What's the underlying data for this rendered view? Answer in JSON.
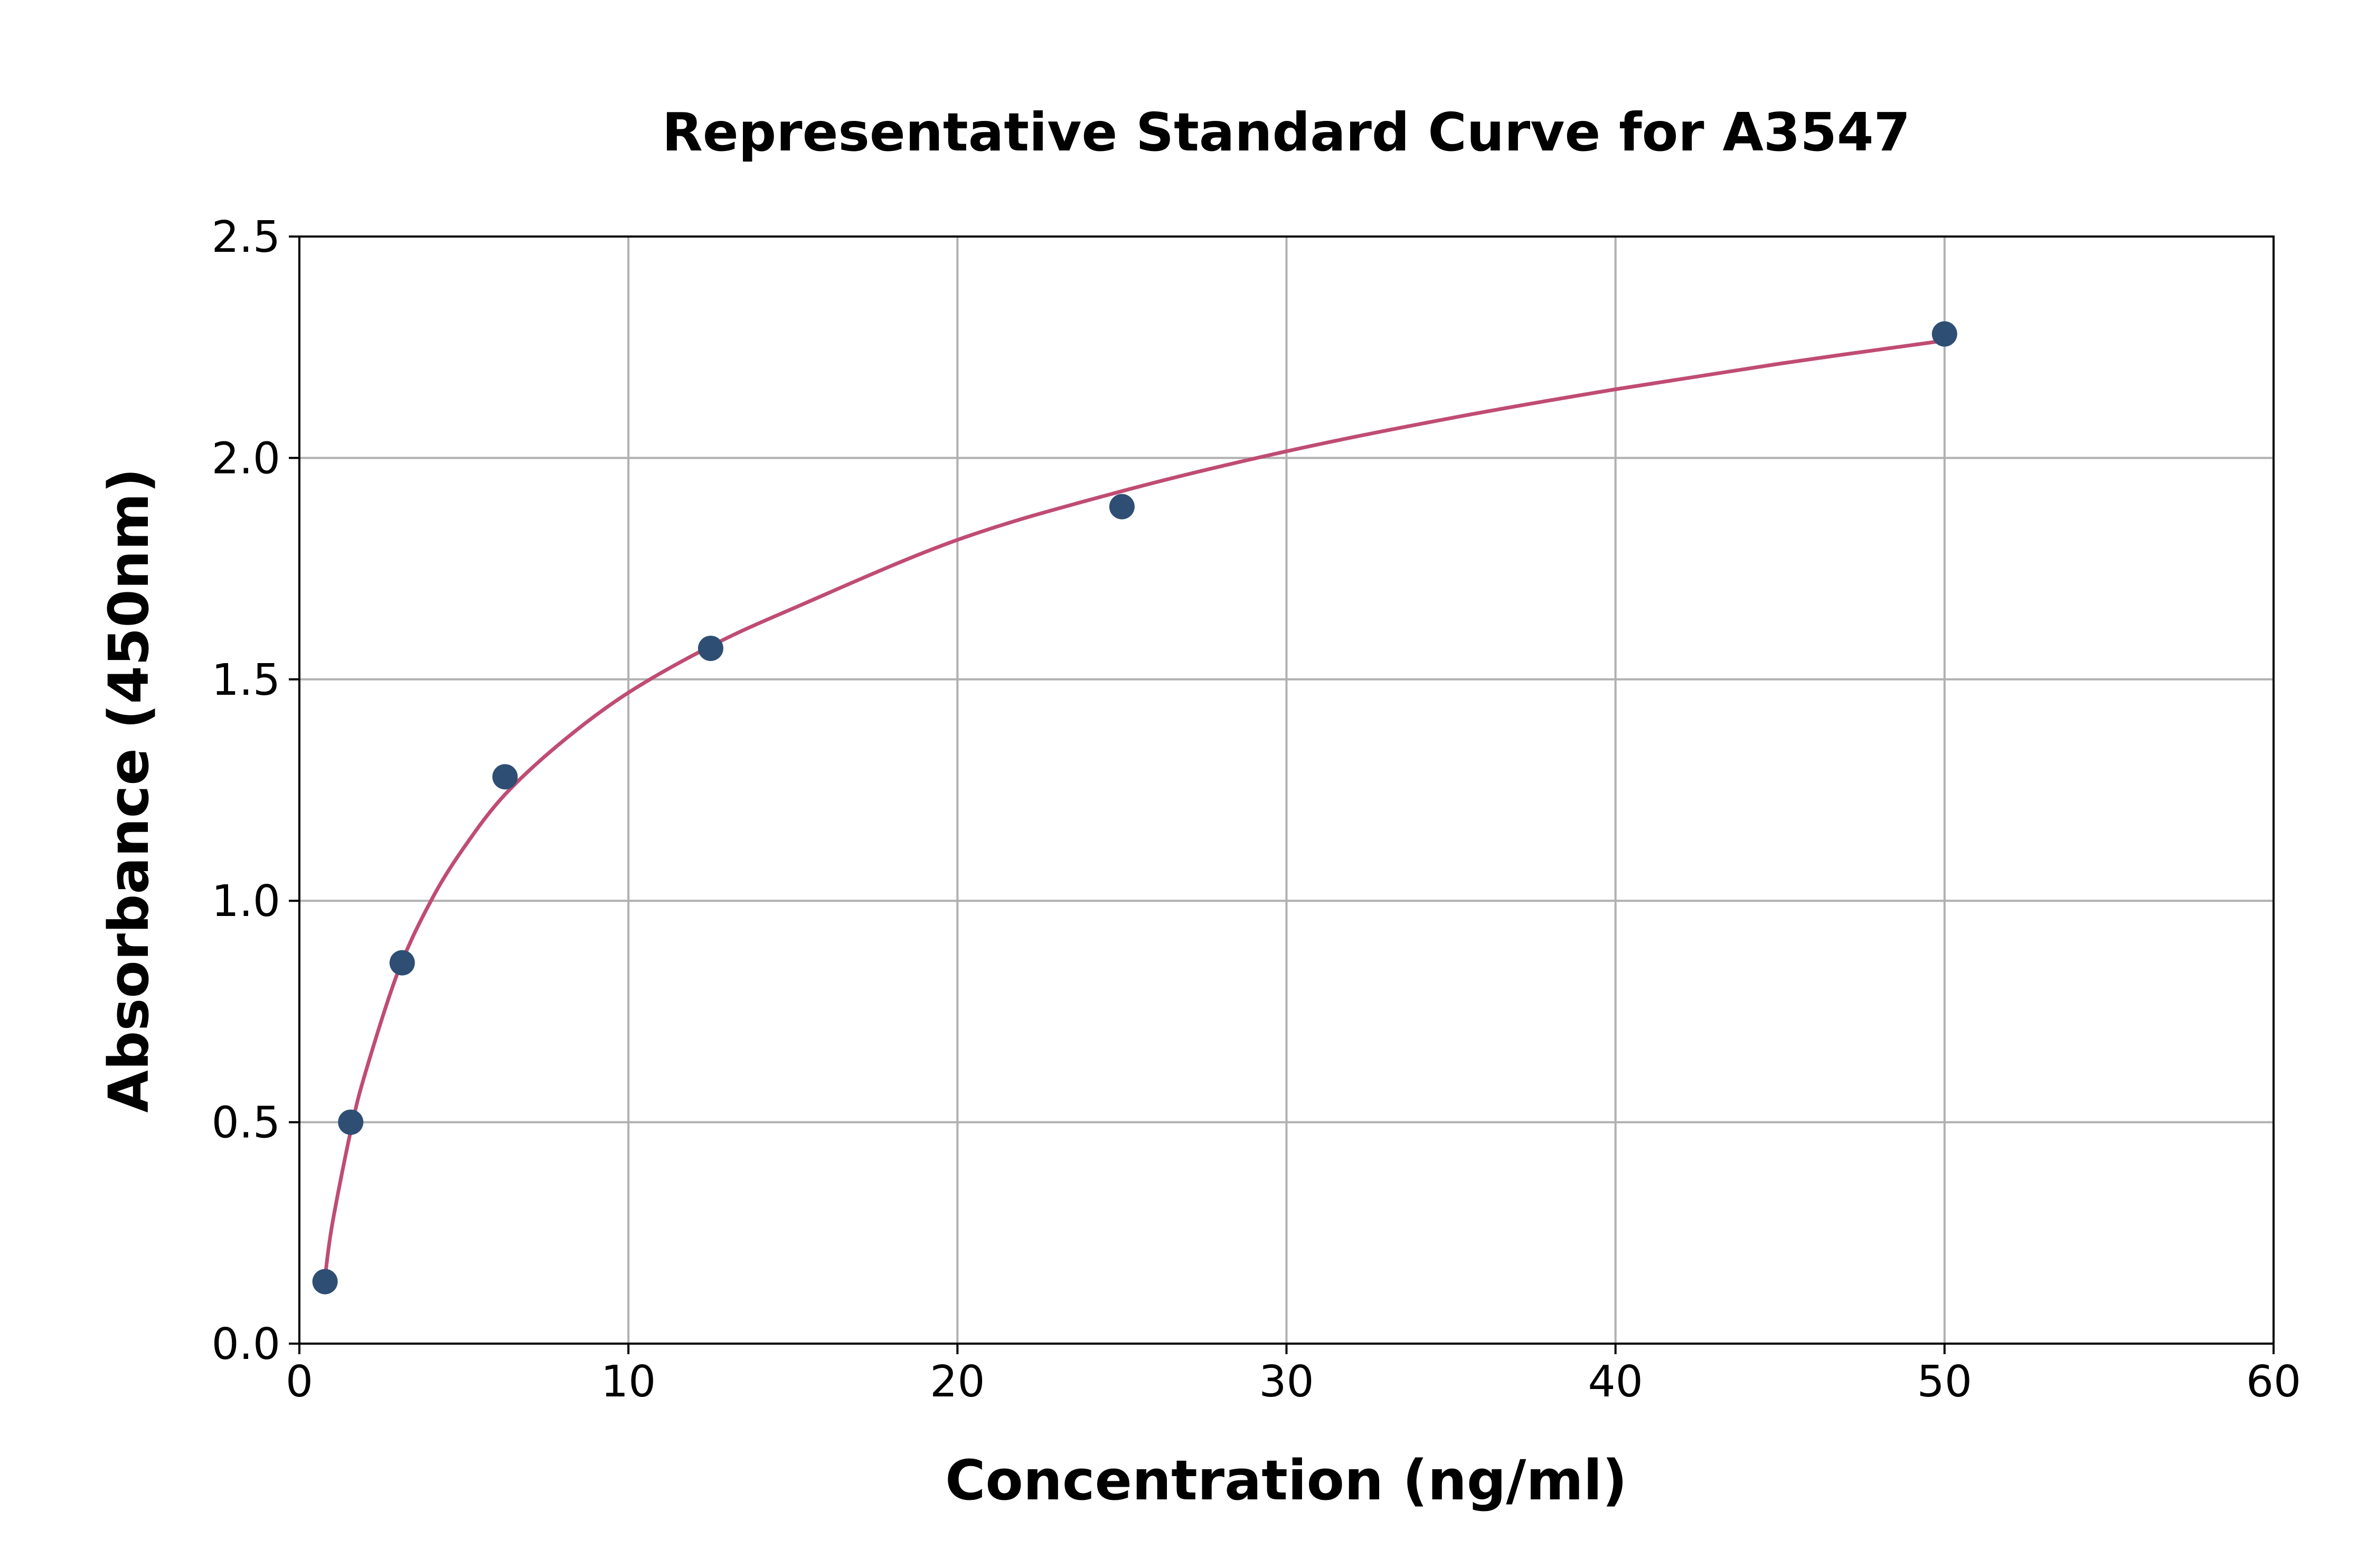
{
  "chart_data": {
    "type": "scatter",
    "title": "Representative Standard Curve for A3547",
    "xlabel": "Concentration (ng/ml)",
    "ylabel": "Absorbance (450nm)",
    "xlim": [
      0,
      60
    ],
    "ylim": [
      0,
      2.5
    ],
    "xticks": [
      "0",
      "10",
      "20",
      "30",
      "40",
      "50",
      "60"
    ],
    "yticks": [
      "0.0",
      "0.5",
      "1.0",
      "1.5",
      "2.0",
      "2.5"
    ],
    "grid": true,
    "points": {
      "x": [
        0.78,
        1.56,
        3.125,
        6.25,
        12.5,
        25,
        50
      ],
      "y": [
        0.14,
        0.5,
        0.86,
        1.28,
        1.57,
        1.89,
        2.28
      ],
      "color": "#2e4e74"
    },
    "fit_curve": {
      "x": [
        0.78,
        1.0,
        1.56,
        2.0,
        3.0,
        4.0,
        5.0,
        6.25,
        8.0,
        10.0,
        12.5,
        15.0,
        20.0,
        25.0,
        30.0,
        35.0,
        40.0,
        45.0,
        50.0
      ],
      "y": [
        0.15,
        0.27,
        0.48,
        0.61,
        0.84,
        1.0,
        1.12,
        1.24,
        1.36,
        1.47,
        1.575,
        1.66,
        1.815,
        1.925,
        2.015,
        2.09,
        2.155,
        2.213,
        2.265
      ],
      "color": "#c04c72"
    }
  }
}
